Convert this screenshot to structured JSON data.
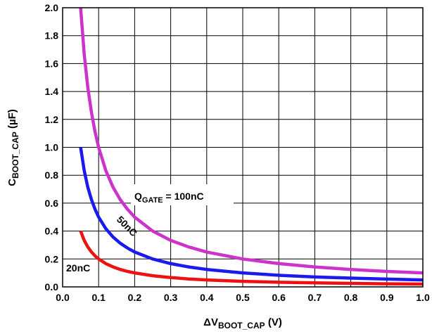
{
  "chart_data": {
    "type": "line",
    "xlabel": {
      "prefix": "ΔV",
      "sub": "BOOT_CAP",
      "suffix": " (V)"
    },
    "ylabel": {
      "prefix": "C",
      "sub": "BOOT_CAP",
      "suffix": " (µF)"
    },
    "xlim": [
      0.0,
      1.0
    ],
    "ylim": [
      0.0,
      2.0
    ],
    "x_ticks": [
      "0.0",
      "0.1",
      "0.2",
      "0.3",
      "0.4",
      "0.5",
      "0.6",
      "0.7",
      "0.8",
      "0.9",
      "1.0"
    ],
    "y_ticks": [
      "0.0",
      "0.2",
      "0.4",
      "0.6",
      "0.8",
      "1.0",
      "1.2",
      "1.4",
      "1.6",
      "1.8",
      "2.0"
    ],
    "grid": true,
    "series": [
      {
        "name": "100nC",
        "color": "#cc33cc",
        "x": [
          0.05,
          0.06,
          0.07,
          0.08,
          0.09,
          0.1,
          0.12,
          0.14,
          0.16,
          0.18,
          0.2,
          0.25,
          0.3,
          0.35,
          0.4,
          0.5,
          0.6,
          0.7,
          0.8,
          0.9,
          1.0
        ],
        "y": [
          2.0,
          1.667,
          1.429,
          1.25,
          1.111,
          1.0,
          0.833,
          0.714,
          0.625,
          0.556,
          0.5,
          0.4,
          0.333,
          0.286,
          0.25,
          0.2,
          0.167,
          0.143,
          0.125,
          0.111,
          0.1
        ]
      },
      {
        "name": "50nC",
        "color": "#1a1aee",
        "x": [
          0.05,
          0.06,
          0.07,
          0.08,
          0.09,
          0.1,
          0.12,
          0.14,
          0.16,
          0.18,
          0.2,
          0.25,
          0.3,
          0.35,
          0.4,
          0.5,
          0.6,
          0.7,
          0.8,
          0.9,
          1.0
        ],
        "y": [
          1.0,
          0.833,
          0.714,
          0.625,
          0.556,
          0.5,
          0.417,
          0.357,
          0.313,
          0.278,
          0.25,
          0.2,
          0.167,
          0.143,
          0.125,
          0.1,
          0.083,
          0.071,
          0.063,
          0.056,
          0.05
        ]
      },
      {
        "name": "20nC",
        "color": "#ee1111",
        "x": [
          0.05,
          0.06,
          0.07,
          0.08,
          0.09,
          0.1,
          0.12,
          0.14,
          0.16,
          0.18,
          0.2,
          0.25,
          0.3,
          0.35,
          0.4,
          0.5,
          0.6,
          0.7,
          0.8,
          0.9,
          1.0
        ],
        "y": [
          0.4,
          0.333,
          0.286,
          0.25,
          0.222,
          0.2,
          0.167,
          0.143,
          0.125,
          0.111,
          0.1,
          0.08,
          0.067,
          0.057,
          0.05,
          0.04,
          0.033,
          0.029,
          0.025,
          0.022,
          0.02
        ]
      }
    ],
    "annotations": [
      {
        "id": "q100",
        "prefix": "Q",
        "sub": "GATE",
        "suffix": " = 100nC"
      },
      {
        "id": "q50",
        "text": "50nC"
      },
      {
        "id": "q20",
        "text": "20nC"
      }
    ]
  }
}
